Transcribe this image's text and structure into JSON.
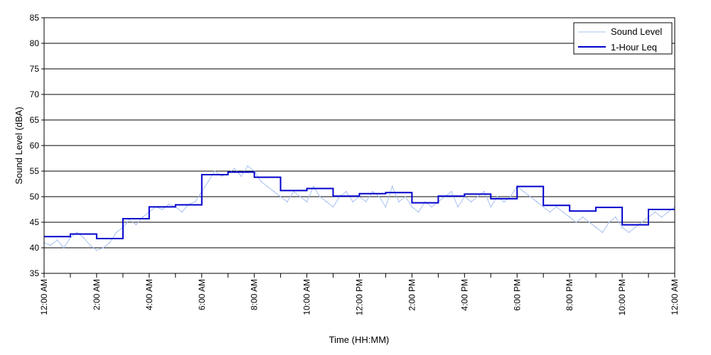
{
  "chart_data": {
    "type": "line",
    "title": "",
    "xlabel": "Time (HH:MM)",
    "ylabel": "Sound Level (dBA)",
    "xlim": [
      0,
      24
    ],
    "ylim": [
      35,
      85
    ],
    "yticks": [
      35,
      40,
      45,
      50,
      55,
      60,
      65,
      70,
      75,
      80,
      85
    ],
    "ytick_labels": [
      "35",
      "40",
      "45",
      "50",
      "55",
      "60",
      "65",
      "70",
      "75",
      "80",
      "85"
    ],
    "xticks": [
      0,
      2,
      4,
      6,
      8,
      10,
      12,
      14,
      16,
      18,
      20,
      22,
      24
    ],
    "xtick_labels": [
      "12:00 AM",
      "2:00 AM",
      "4:00 AM",
      "6:00 AM",
      "8:00 AM",
      "10:00 AM",
      "12:00 PM",
      "2:00 PM",
      "4:00 PM",
      "6:00 PM",
      "8:00 PM",
      "10:00 PM",
      "12:00 AM"
    ],
    "grid": "horizontal",
    "legend_position": "top-right",
    "series": [
      {
        "name": "Sound Level",
        "color": "#a8c0f0",
        "style": "thin",
        "x": [
          0,
          0.25,
          0.5,
          0.75,
          1,
          1.25,
          1.5,
          1.75,
          2,
          2.25,
          2.5,
          2.75,
          3,
          3.25,
          3.5,
          3.75,
          4,
          4.25,
          4.5,
          4.75,
          5,
          5.25,
          5.5,
          5.75,
          6,
          6.25,
          6.5,
          6.75,
          7,
          7.25,
          7.5,
          7.75,
          8,
          8.25,
          8.5,
          8.75,
          9,
          9.25,
          9.5,
          9.75,
          10,
          10.25,
          10.5,
          10.75,
          11,
          11.25,
          11.5,
          11.75,
          12,
          12.25,
          12.5,
          12.75,
          13,
          13.25,
          13.5,
          13.75,
          14,
          14.25,
          14.5,
          14.75,
          15,
          15.25,
          15.5,
          15.75,
          16,
          16.25,
          16.5,
          16.75,
          17,
          17.25,
          17.5,
          17.75,
          18,
          18.25,
          18.5,
          18.75,
          19,
          19.25,
          19.5,
          19.75,
          20,
          20.25,
          20.5,
          20.75,
          21,
          21.25,
          21.5,
          21.75,
          22,
          22.25,
          22.5,
          22.75,
          23,
          23.25,
          23.5,
          23.75,
          24
        ],
        "y": [
          41,
          40.5,
          41.5,
          40,
          42,
          43,
          42,
          40.5,
          39.5,
          40,
          41,
          43,
          44,
          45.5,
          44.5,
          46,
          47,
          48,
          47.5,
          48.5,
          48,
          47,
          48.5,
          49,
          51,
          53,
          55,
          54,
          54.5,
          55.5,
          54,
          56,
          55,
          53,
          52,
          51,
          50,
          49,
          51,
          50,
          49,
          52,
          50,
          49,
          48,
          50,
          51,
          49,
          50,
          49,
          51,
          50,
          48,
          52,
          49,
          50,
          48,
          47,
          49,
          48,
          49,
          50,
          51,
          48,
          50,
          49,
          50,
          51,
          48,
          50,
          49,
          50,
          52,
          51,
          50,
          49,
          48,
          47,
          48,
          47,
          46,
          45,
          46,
          45,
          44,
          43,
          45,
          46,
          44,
          43,
          44,
          45,
          46,
          47,
          46,
          47,
          48
        ]
      },
      {
        "name": "1-Hour Leq",
        "color": "#0000cc",
        "style": "step",
        "x": [
          0,
          1,
          2,
          3,
          4,
          5,
          6,
          7,
          8,
          9,
          10,
          11,
          12,
          13,
          14,
          15,
          16,
          17,
          18,
          19,
          20,
          21,
          22,
          23,
          24
        ],
        "y": [
          42.2,
          42.7,
          41.8,
          45.7,
          48.0,
          48.4,
          54.3,
          54.8,
          53.8,
          51.2,
          51.6,
          50.1,
          50.6,
          50.8,
          48.8,
          50.1,
          50.5,
          49.6,
          52.0,
          48.3,
          47.2,
          47.9,
          44.5,
          47.5,
          47.5
        ]
      }
    ]
  }
}
